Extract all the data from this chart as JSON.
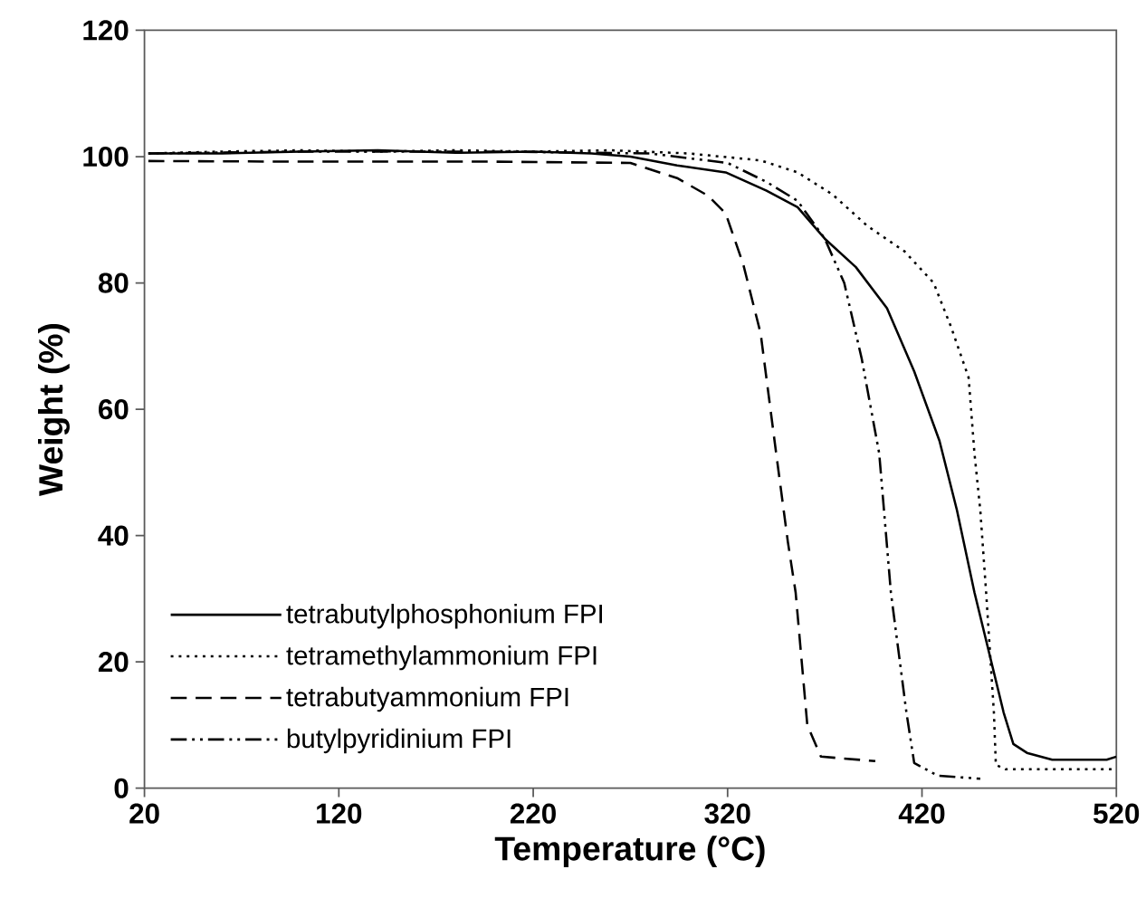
{
  "chart_data": {
    "type": "line",
    "xlabel": "Temperature (°C)",
    "ylabel": "Weight (%)",
    "xlim": [
      20,
      520
    ],
    "xticks": [
      20,
      120,
      220,
      320,
      420,
      520
    ],
    "ylim": [
      0,
      120
    ],
    "yticks": [
      0,
      20,
      40,
      60,
      80,
      100,
      120
    ],
    "grid": false,
    "legend": "bottom left",
    "marker": "none",
    "series": [
      {
        "name": "tetrabutylphosphonium FPI",
        "color": "#000000",
        "line_style": "solid",
        "x": [
          22,
          60,
          100,
          140,
          180,
          220,
          250,
          270,
          294,
          319,
          340,
          356,
          370,
          386,
          402,
          416,
          429,
          438,
          447,
          462,
          467,
          474,
          487,
          500,
          515,
          520
        ],
        "values": [
          100.5,
          100.5,
          100.8,
          101,
          100.6,
          100.8,
          100.5,
          100,
          98.6,
          97.5,
          94.6,
          92,
          87,
          82.5,
          76,
          66,
          55,
          44,
          31,
          12,
          7,
          5.6,
          4.5,
          4.5,
          4.5,
          5
        ]
      },
      {
        "name": "tetramethylammonium FPI",
        "color": "#000000",
        "line_style": "dotted",
        "x": [
          22,
          60,
          100,
          140,
          180,
          220,
          260,
          300,
          337,
          356,
          374,
          392,
          411,
          426,
          435,
          444,
          447,
          450,
          453,
          457,
          458,
          463,
          490,
          520
        ],
        "values": [
          100.5,
          100.8,
          101,
          100.8,
          101,
          100.8,
          101,
          100.5,
          99.4,
          97.5,
          94,
          89,
          85,
          80,
          73,
          65,
          53,
          44,
          31,
          12,
          3.7,
          3,
          3,
          3
        ]
      },
      {
        "name": "tetrabutyammonium FPI",
        "color": "#000000",
        "line_style": "dashed",
        "x": [
          22,
          100,
          200,
          270,
          294,
          310,
          319,
          328,
          337,
          345,
          351,
          355,
          361,
          368,
          396
        ],
        "values": [
          99.3,
          99.2,
          99.2,
          99,
          96.6,
          93.8,
          91,
          83,
          72,
          53,
          39,
          31,
          10,
          5,
          4.3
        ]
      },
      {
        "name": "butylpyridinium FPI",
        "color": "#000000",
        "line_style": "dashdot",
        "x": [
          22,
          100,
          200,
          280,
          320,
          340,
          356,
          370,
          380,
          389,
          398,
          404,
          412,
          416,
          428,
          450
        ],
        "values": [
          100.5,
          100.8,
          100.8,
          100.5,
          99,
          96,
          93,
          87,
          80,
          68,
          53,
          31,
          12,
          4,
          2,
          1.5
        ]
      }
    ]
  }
}
